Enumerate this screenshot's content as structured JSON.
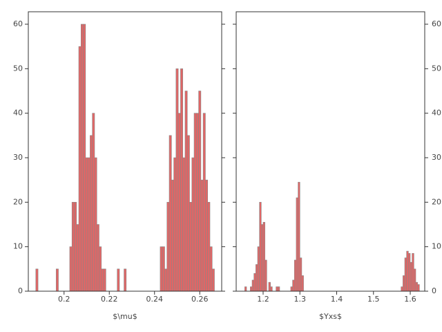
{
  "chart_data": [
    {
      "type": "histogram",
      "xlabel": "$\\mu$",
      "color": "#e06666",
      "edgecolor": "#888888",
      "yaxis_side": "left",
      "xlim": [
        0.1842,
        0.2697
      ],
      "ylim": [
        0,
        62.8
      ],
      "xticks": [
        0.2,
        0.22,
        0.24,
        0.26
      ],
      "yticks": [
        0,
        10,
        20,
        30,
        40,
        50,
        60
      ],
      "bins": [
        0.1875,
        0.1885,
        0.1895,
        0.1905,
        0.1915,
        0.1925,
        0.1935,
        0.1945,
        0.1955,
        0.1965,
        0.1975,
        0.1985,
        0.1995,
        0.2005,
        0.2015,
        0.2025,
        0.2035,
        0.2045,
        0.2055,
        0.2065,
        0.2075,
        0.2085,
        0.2095,
        0.2105,
        0.2115,
        0.2125,
        0.2135,
        0.2145,
        0.2155,
        0.2165,
        0.2175,
        0.2185,
        0.2195,
        0.2205,
        0.2215,
        0.2225,
        0.2235,
        0.2245,
        0.2255,
        0.2265,
        0.2275,
        0.2285,
        0.2295,
        0.2305,
        0.2315,
        0.2325,
        0.2335,
        0.2345,
        0.2355,
        0.2365,
        0.2375,
        0.2385,
        0.2395,
        0.2405,
        0.2415,
        0.2425,
        0.2435,
        0.2445,
        0.2455,
        0.2465,
        0.2475,
        0.2485,
        0.2495,
        0.2505,
        0.2515,
        0.2525,
        0.2535,
        0.2545,
        0.2555,
        0.2565,
        0.2575,
        0.2585,
        0.2595,
        0.2605,
        0.2615,
        0.2625,
        0.2635,
        0.2645,
        0.2655,
        0.2665
      ],
      "values": [
        5,
        0,
        0,
        0,
        0,
        0,
        0,
        0,
        0,
        5,
        0,
        0,
        0,
        0,
        0,
        10,
        20,
        20,
        15,
        55,
        60,
        60,
        30,
        30,
        35,
        40,
        30,
        15,
        10,
        5,
        5,
        0,
        0,
        0,
        0,
        0,
        5,
        0,
        0,
        5,
        0,
        0,
        0,
        0,
        0,
        0,
        0,
        0,
        0,
        0,
        0,
        0,
        0,
        0,
        0,
        10,
        10,
        5,
        20,
        35,
        25,
        30,
        50,
        40,
        50,
        30,
        45,
        35,
        20,
        30,
        40,
        40,
        45,
        25,
        40,
        25,
        20,
        10,
        5
      ]
    },
    {
      "type": "histogram",
      "xlabel": "$Yxs$",
      "color": "#e06666",
      "edgecolor": "#888888",
      "yaxis_side": "right",
      "xlim": [
        1.1268,
        1.6394
      ],
      "ylim": [
        0,
        62.8
      ],
      "xticks": [
        1.2,
        1.3,
        1.4,
        1.5,
        1.6
      ],
      "yticks": [
        0,
        10,
        20,
        30,
        40,
        50,
        60
      ],
      "bins": [
        1.15,
        1.155,
        1.16,
        1.165,
        1.17,
        1.175,
        1.18,
        1.185,
        1.19,
        1.195,
        1.2,
        1.205,
        1.21,
        1.215,
        1.22,
        1.225,
        1.23,
        1.235,
        1.24,
        1.245,
        1.25,
        1.255,
        1.26,
        1.265,
        1.27,
        1.275,
        1.28,
        1.285,
        1.29,
        1.295,
        1.3,
        1.305,
        1.31,
        1.315,
        1.32,
        1.325,
        1.33,
        1.335,
        1.34,
        1.345,
        1.35,
        1.355,
        1.36,
        1.365,
        1.37,
        1.375,
        1.38,
        1.385,
        1.39,
        1.395,
        1.4,
        1.405,
        1.41,
        1.415,
        1.42,
        1.425,
        1.43,
        1.435,
        1.44,
        1.445,
        1.45,
        1.455,
        1.46,
        1.465,
        1.47,
        1.475,
        1.48,
        1.485,
        1.49,
        1.495,
        1.5,
        1.505,
        1.51,
        1.515,
        1.52,
        1.525,
        1.53,
        1.535,
        1.54,
        1.545,
        1.55,
        1.555,
        1.56,
        1.565,
        1.57,
        1.575,
        1.58,
        1.585,
        1.59,
        1.595,
        1.6,
        1.605,
        1.61,
        1.615,
        1.62,
        1.625
      ],
      "values": [
        1,
        0,
        0,
        1,
        2.5,
        4,
        6,
        10,
        20,
        15,
        15.5,
        7,
        0,
        2,
        1,
        0,
        0,
        1,
        1,
        0,
        0,
        0,
        0,
        0,
        0,
        1,
        2.5,
        7,
        21,
        24.5,
        7.5,
        3.5,
        0,
        0,
        0,
        0,
        0,
        0,
        0,
        0,
        0,
        0,
        0,
        0,
        0,
        0,
        0,
        0,
        0,
        0,
        0,
        0,
        0,
        0,
        0,
        0,
        0,
        0,
        0,
        0,
        0,
        0,
        0,
        0,
        0,
        0,
        0,
        0,
        0,
        0,
        0,
        0,
        0,
        0,
        0,
        0,
        0,
        0,
        0,
        0,
        0,
        0,
        0,
        0,
        0,
        1,
        3.5,
        7.5,
        9,
        8.5,
        6.5,
        8.5,
        5,
        2,
        1.5
      ]
    }
  ]
}
